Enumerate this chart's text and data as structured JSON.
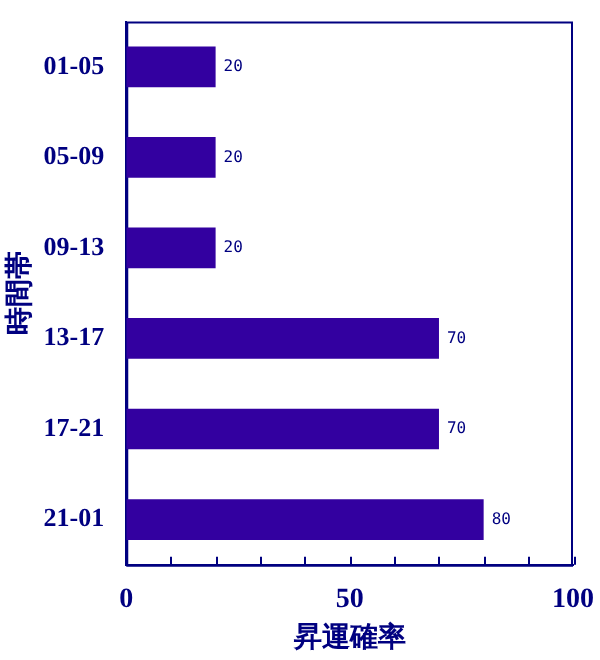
{
  "chart_data": {
    "type": "bar",
    "orientation": "horizontal",
    "xlabel": "昇運確率",
    "ylabel": "時間帯",
    "categories": [
      "01-05",
      "05-09",
      "09-13",
      "13-17",
      "17-21",
      "21-01"
    ],
    "values": [
      20,
      20,
      20,
      70,
      70,
      80
    ],
    "color": "#3300a0",
    "data_labels": true,
    "xlim": [
      0,
      100
    ],
    "xticks": [
      0,
      {
        "value": 10,
        "label": null
      },
      {
        "value": 20,
        "label": null
      },
      {
        "value": 30,
        "label": null
      },
      {
        "value": 40,
        "label": null
      },
      50,
      {
        "value": 60,
        "label": null
      },
      {
        "value": 70,
        "label": null
      },
      {
        "value": 80,
        "label": null
      },
      {
        "value": 90,
        "label": null
      },
      100
    ],
    "grid": false,
    "legend": false
  }
}
